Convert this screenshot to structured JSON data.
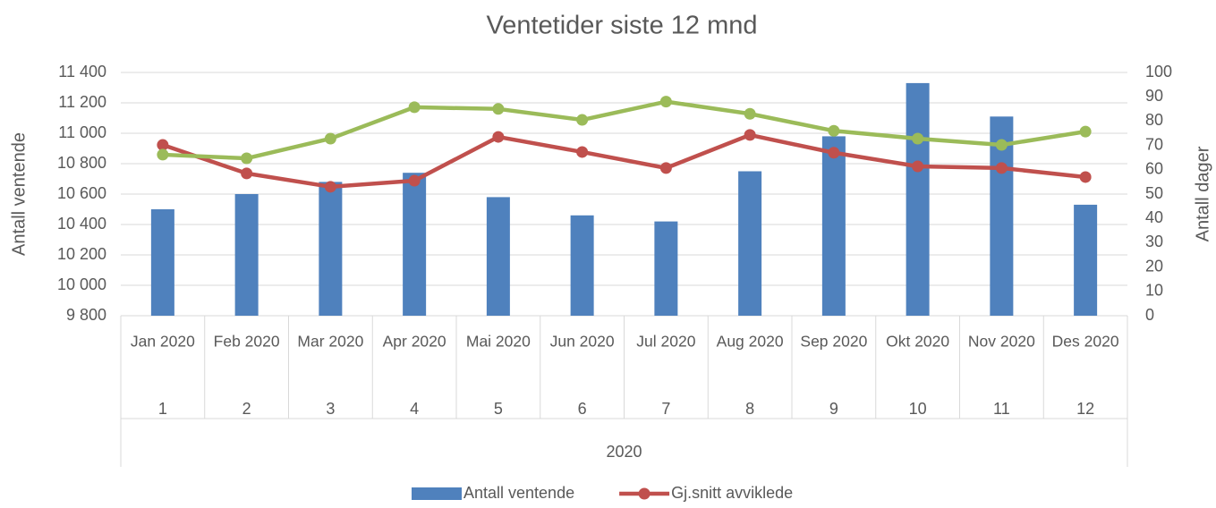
{
  "chart_data": {
    "type": "bar",
    "title": "Ventetider siste 12 mnd",
    "y_label": "Antall ventende",
    "y2_label": "Antall dager",
    "categories": [
      "Jan 2020",
      "Feb 2020",
      "Mar 2020",
      "Apr 2020",
      "Mai 2020",
      "Jun 2020",
      "Jul 2020",
      "Aug 2020",
      "Sep 2020",
      "Okt 2020",
      "Nov 2020",
      "Des 2020"
    ],
    "category_numbers": [
      "1",
      "2",
      "3",
      "4",
      "5",
      "6",
      "7",
      "8",
      "9",
      "10",
      "11",
      "12"
    ],
    "category_group": "2020",
    "series": [
      {
        "name": "Antall ventende",
        "type": "bar",
        "axis": "y",
        "color": "#4f81bd",
        "values": [
          10500,
          10600,
          10680,
          10740,
          10580,
          10460,
          10420,
          10750,
          10980,
          11330,
          11110,
          10530
        ]
      },
      {
        "name": "Gj.snitt avviklede",
        "type": "line",
        "axis": "y2",
        "color": "#c0504d",
        "values": [
          70.2,
          58.5,
          53,
          55.5,
          73.5,
          67.3,
          60.7,
          74.3,
          67,
          61.4,
          60.7,
          57
        ]
      },
      {
        "type": "line",
        "axis": "y2",
        "color": "#9bbb59",
        "values": [
          66.2,
          64.7,
          72.8,
          85.7,
          85,
          80.5,
          88,
          83,
          76,
          72.8,
          70.2,
          75.7
        ]
      }
    ],
    "ylim": [
      9800,
      11400
    ],
    "yticks": [
      {
        "value": 9800,
        "label": "9 800"
      },
      {
        "value": 10000,
        "label": "10 000"
      },
      {
        "value": 10200,
        "label": "10 200"
      },
      {
        "value": 10400,
        "label": "10 400"
      },
      {
        "value": 10600,
        "label": "10 600"
      },
      {
        "value": 10800,
        "label": "10 800"
      },
      {
        "value": 11000,
        "label": "11 000"
      },
      {
        "value": 11200,
        "label": "11 200"
      },
      {
        "value": 11400,
        "label": "11 400"
      }
    ],
    "y2lim": [
      0,
      100
    ],
    "y2ticks": [
      0,
      10,
      20,
      30,
      40,
      50,
      60,
      70,
      80,
      90,
      100
    ],
    "grid": true,
    "legend": "bottom"
  }
}
